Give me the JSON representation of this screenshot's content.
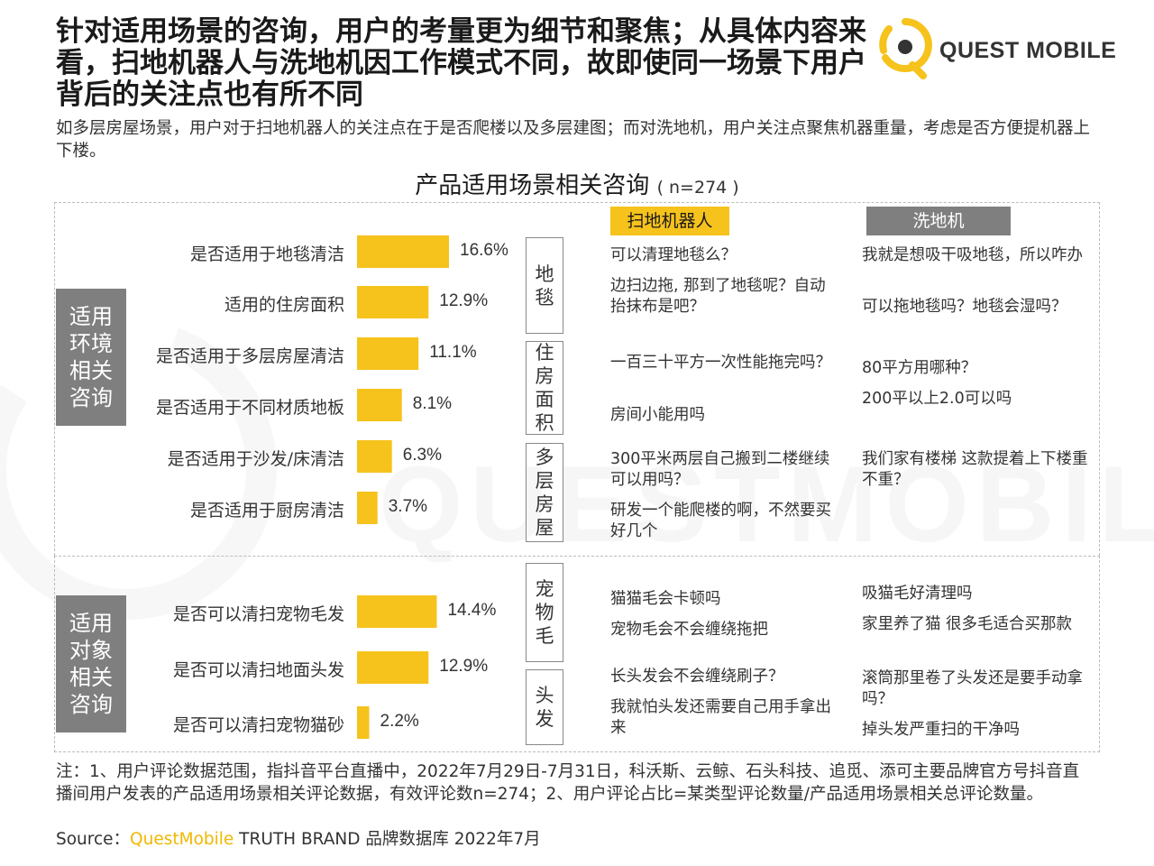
{
  "title": "针对适用场景的咨询，用户的考量更为细节和聚焦；从具体内容来看，扫地机器人与洗地机因工作模式不同，故即使同一场景下用户背后的关注点也有所不同",
  "subtitle": "如多层房屋场景，用户对于扫地机器人的关注点在于是否爬楼以及多层建图；而对洗地机，用户关注点聚焦机器重量，考虑是否方便提机器上下楼。",
  "logo": {
    "text": "QUEST MOBILE",
    "watermark": "QUESTMOBILE"
  },
  "chart_title": {
    "main": "产品适用场景相关咨询",
    "n": "( n=274 )"
  },
  "columns": {
    "robot": "扫地机器人",
    "washer": "洗地机"
  },
  "groups": [
    {
      "label": "适用环境相关咨询"
    },
    {
      "label": "适用对象相关咨询"
    }
  ],
  "chart_data": {
    "type": "bar",
    "orientation": "horizontal",
    "title": "产品适用场景相关咨询",
    "n": 274,
    "unit": "%",
    "xlim": [
      0,
      20
    ],
    "categories": [
      "是否适用于地毯清洁",
      "适用的住房面积",
      "是否适用于多层房屋清洁",
      "是否适用于不同材质地板",
      "是否适用于沙发/床清洁",
      "是否适用于厨房清洁",
      "是否可以清扫宠物毛发",
      "是否可以清扫地面头发",
      "是否可以清扫宠物猫砂"
    ],
    "values": [
      16.6,
      12.9,
      11.1,
      8.1,
      6.3,
      3.7,
      14.4,
      12.9,
      2.2
    ],
    "value_labels": [
      "16.6%",
      "12.9%",
      "11.1%",
      "8.1%",
      "6.3%",
      "3.7%",
      "14.4%",
      "12.9%",
      "2.2%"
    ],
    "group_of_category": [
      0,
      0,
      0,
      0,
      0,
      0,
      1,
      1,
      1
    ],
    "color": "#f6c21c"
  },
  "topics": [
    {
      "label": "地毯",
      "robot": [
        "可以清理地毯么？",
        "边扫边拖, 那到了地毯呢？自动抬抹布是吧？"
      ],
      "washer": [
        "我就是想吸干吸地毯，所以咋办",
        "可以拖地毯吗？地毯会湿吗？"
      ]
    },
    {
      "label": "住房面积",
      "robot": [
        "一百三十平方一次性能拖完吗？",
        "房间小能用吗"
      ],
      "washer": [
        "80平方用哪种？",
        "200平以上2.0可以吗"
      ]
    },
    {
      "label": "多层房屋",
      "robot": [
        "300平米两层自己搬到二楼继续可以用吗？",
        "研发一个能爬楼的啊，不然要买好几个"
      ],
      "washer": [
        "我们家有楼梯 这款提着上下楼重不重？"
      ]
    },
    {
      "label": "宠物毛",
      "robot": [
        "猫猫毛会卡顿吗",
        "宠物毛会不会缠绕拖把"
      ],
      "washer": [
        "吸猫毛好清理吗",
        "家里养了猫 很多毛适合买那款"
      ]
    },
    {
      "label": "头发",
      "robot": [
        "长头发会不会缠绕刷子？",
        "我就怕头发还需要自己用手拿出来"
      ],
      "washer": [
        "滚筒那里卷了头发还是要手动拿吗？",
        "掉头发严重扫的干净吗"
      ]
    }
  ],
  "footnote": "注：1、用户评论数据范围，指抖音平台直播中，2022年7月29日-7月31日，科沃斯、云鲸、石头科技、追觅、添可主要品牌官方号抖音直播间用户发表的产品适用场景相关评论数据，有效评论数n=274；2、用户评论占比=某类型评论数量/产品适用场景相关总评论数量。",
  "source": {
    "prefix": "Source：",
    "brand": "QuestMobile",
    "suffix": " TRUTH BRAND 品牌数据库 2022年7月"
  },
  "colors": {
    "accent": "#f6c21c",
    "gray": "#7f7f7f"
  }
}
